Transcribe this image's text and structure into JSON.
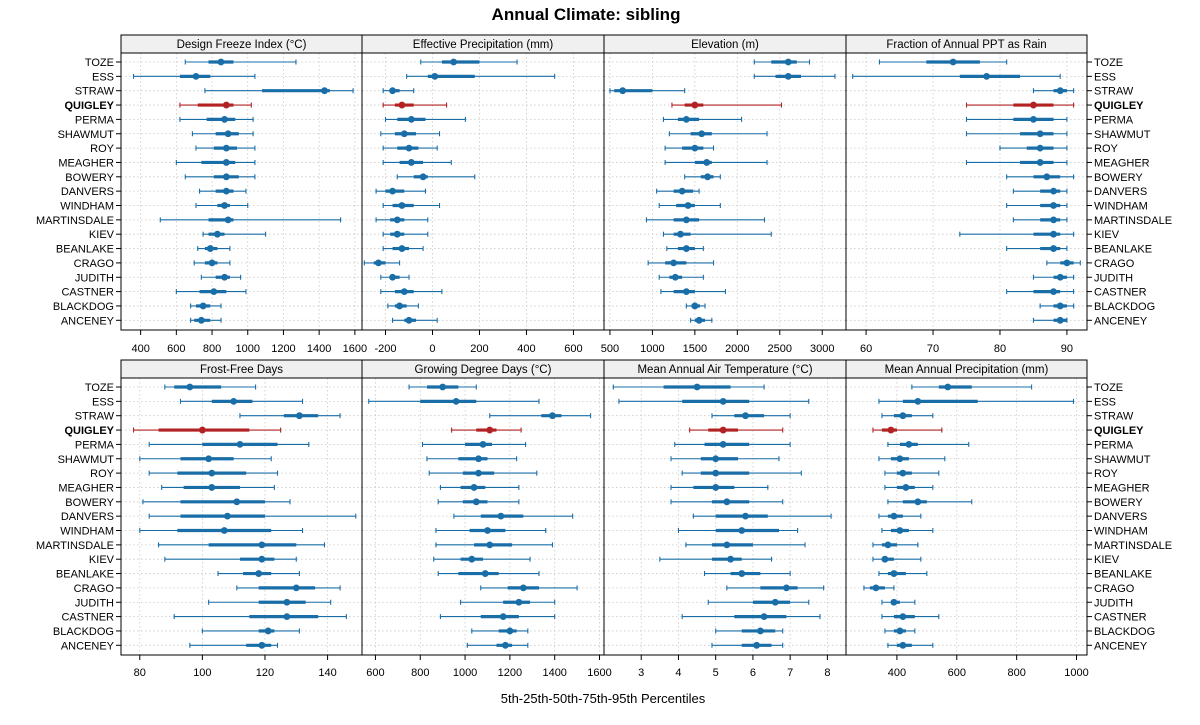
{
  "title": "Annual Climate: sibling",
  "xlabel": "5th-25th-50th-75th-95th Percentiles",
  "colors": {
    "normal": "#1a6ea8",
    "highlight": "#b22222",
    "strip_bg": "#f0f0f0",
    "grid": "#c8c8c8"
  },
  "sites": [
    "TOZE",
    "ESS",
    "STRAW",
    "QUIGLEY",
    "PERMA",
    "SHAWMUT",
    "ROY",
    "MEAGHER",
    "BOWERY",
    "DANVERS",
    "WINDHAM",
    "MARTINSDALE",
    "KIEV",
    "BEANLAKE",
    "CRAGO",
    "JUDITH",
    "CASTNER",
    "BLACKDOG",
    "ANCENEY"
  ],
  "highlight_site": "QUIGLEY",
  "chart_data": [
    {
      "type": "percentile-dotplot",
      "title": "Design Freeze Index (°C)",
      "xlim": [
        290,
        1640
      ],
      "ticks": [
        400,
        600,
        800,
        1000,
        1200,
        1400,
        1600
      ],
      "tick_labels": [
        "400",
        "600",
        "800",
        "1000",
        "1200",
        "1400",
        "1600"
      ],
      "values": [
        [
          650,
          780,
          850,
          920,
          1270
        ],
        [
          360,
          620,
          710,
          790,
          1040
        ],
        [
          760,
          1080,
          1430,
          1460,
          1590
        ],
        [
          620,
          720,
          880,
          920,
          1020
        ],
        [
          620,
          770,
          870,
          930,
          1030
        ],
        [
          690,
          820,
          890,
          950,
          1030
        ],
        [
          710,
          810,
          880,
          940,
          1040
        ],
        [
          600,
          740,
          880,
          930,
          1040
        ],
        [
          650,
          810,
          880,
          950,
          1040
        ],
        [
          730,
          820,
          880,
          920,
          990
        ],
        [
          710,
          830,
          870,
          900,
          1000
        ],
        [
          510,
          780,
          890,
          920,
          1520
        ],
        [
          750,
          780,
          830,
          870,
          1100
        ],
        [
          720,
          760,
          790,
          830,
          900
        ],
        [
          700,
          760,
          800,
          830,
          900
        ],
        [
          740,
          820,
          870,
          900,
          960
        ],
        [
          600,
          730,
          810,
          880,
          990
        ],
        [
          680,
          710,
          750,
          790,
          850
        ],
        [
          680,
          700,
          740,
          790,
          850
        ]
      ]
    },
    {
      "type": "percentile-dotplot",
      "title": "Effective Precipitation (mm)",
      "xlim": [
        -300,
        730
      ],
      "ticks": [
        -200,
        0,
        200,
        400,
        600
      ],
      "tick_labels": [
        "-200",
        "0",
        "200",
        "400",
        "600"
      ],
      "values": [
        [
          -50,
          40,
          90,
          200,
          360
        ],
        [
          -110,
          -20,
          10,
          180,
          520
        ],
        [
          -210,
          -180,
          -170,
          -140,
          -80
        ],
        [
          -210,
          -160,
          -130,
          -80,
          60
        ],
        [
          -200,
          -150,
          -90,
          -30,
          140
        ],
        [
          -220,
          -160,
          -120,
          -70,
          30
        ],
        [
          -210,
          -150,
          -100,
          -60,
          20
        ],
        [
          -210,
          -140,
          -90,
          -40,
          80
        ],
        [
          -150,
          -80,
          -40,
          -20,
          180
        ],
        [
          -240,
          -200,
          -170,
          -120,
          -30
        ],
        [
          -210,
          -170,
          -130,
          -80,
          30
        ],
        [
          -240,
          -180,
          -150,
          -120,
          -20
        ],
        [
          -210,
          -180,
          -150,
          -120,
          -20
        ],
        [
          -210,
          -170,
          -130,
          -100,
          -40
        ],
        [
          -290,
          -250,
          -230,
          -200,
          -140
        ],
        [
          -220,
          -180,
          -170,
          -140,
          -100
        ],
        [
          -220,
          -160,
          -120,
          -80,
          40
        ],
        [
          -190,
          -160,
          -140,
          -110,
          -60
        ],
        [
          -170,
          -120,
          -100,
          -70,
          20
        ]
      ]
    },
    {
      "type": "percentile-dotplot",
      "title": "Elevation (m)",
      "xlim": [
        430,
        3280
      ],
      "ticks": [
        500,
        1000,
        1500,
        2000,
        2500,
        3000
      ],
      "tick_labels": [
        "500",
        "1000",
        "1500",
        "2000",
        "2500",
        "3000"
      ],
      "values": [
        [
          2200,
          2400,
          2600,
          2700,
          2850
        ],
        [
          2200,
          2450,
          2600,
          2750,
          3150
        ],
        [
          500,
          550,
          650,
          1000,
          1380
        ],
        [
          1230,
          1380,
          1500,
          1600,
          2520
        ],
        [
          1130,
          1300,
          1400,
          1550,
          2050
        ],
        [
          1200,
          1450,
          1580,
          1700,
          2350
        ],
        [
          1150,
          1350,
          1500,
          1600,
          1720
        ],
        [
          1150,
          1500,
          1640,
          1700,
          2350
        ],
        [
          1380,
          1570,
          1650,
          1720,
          1800
        ],
        [
          1050,
          1250,
          1350,
          1480,
          1550
        ],
        [
          1080,
          1280,
          1420,
          1500,
          1800
        ],
        [
          930,
          1250,
          1400,
          1550,
          2320
        ],
        [
          1130,
          1250,
          1330,
          1450,
          2400
        ],
        [
          1170,
          1300,
          1400,
          1500,
          1600
        ],
        [
          950,
          1150,
          1250,
          1400,
          1720
        ],
        [
          1080,
          1200,
          1270,
          1350,
          1600
        ],
        [
          1100,
          1250,
          1400,
          1500,
          1860
        ],
        [
          1400,
          1460,
          1500,
          1560,
          1620
        ],
        [
          1450,
          1500,
          1550,
          1620,
          1700
        ]
      ]
    },
    {
      "type": "percentile-dotplot",
      "title": "Fraction of Annual PPT as Rain",
      "xlim": [
        57,
        93
      ],
      "ticks": [
        60,
        70,
        80,
        90
      ],
      "tick_labels": [
        "60",
        "70",
        "80",
        "90"
      ],
      "values": [
        [
          62,
          69,
          73,
          77,
          81
        ],
        [
          58,
          74,
          78,
          83,
          89
        ],
        [
          85,
          88,
          89,
          90,
          91
        ],
        [
          75,
          82,
          85,
          88,
          91
        ],
        [
          75,
          82,
          85,
          88,
          90
        ],
        [
          75,
          83,
          86,
          88,
          90
        ],
        [
          80,
          84,
          86,
          88,
          90
        ],
        [
          75,
          83,
          86,
          88,
          90
        ],
        [
          81,
          85,
          87,
          89,
          91
        ],
        [
          82,
          86,
          88,
          89,
          90
        ],
        [
          81,
          86,
          88,
          89,
          90
        ],
        [
          82,
          86,
          88,
          89,
          90
        ],
        [
          74,
          85,
          88,
          89,
          91
        ],
        [
          81,
          86,
          88,
          89,
          90
        ],
        [
          87,
          89,
          90,
          91,
          92
        ],
        [
          85,
          88,
          89,
          90,
          91
        ],
        [
          81,
          85,
          88,
          89,
          91
        ],
        [
          86,
          88,
          89,
          90,
          91
        ],
        [
          85,
          88,
          89,
          90,
          90
        ]
      ]
    },
    {
      "type": "percentile-dotplot",
      "title": "Frost-Free Days",
      "xlim": [
        74,
        151
      ],
      "ticks": [
        80,
        100,
        120,
        140
      ],
      "tick_labels": [
        "80",
        "100",
        "120",
        "140"
      ],
      "values": [
        [
          88,
          91,
          96,
          106,
          117
        ],
        [
          93,
          103,
          110,
          116,
          132
        ],
        [
          112,
          126,
          131,
          137,
          144
        ],
        [
          78,
          86,
          100,
          115,
          125
        ],
        [
          83,
          100,
          112,
          124,
          134
        ],
        [
          80,
          93,
          102,
          110,
          122
        ],
        [
          83,
          92,
          103,
          114,
          124
        ],
        [
          87,
          94,
          103,
          112,
          123
        ],
        [
          81,
          93,
          111,
          120,
          128
        ],
        [
          83,
          93,
          108,
          120,
          149
        ],
        [
          80,
          92,
          107,
          122,
          132
        ],
        [
          86,
          102,
          119,
          130,
          139
        ],
        [
          88,
          112,
          119,
          123,
          130
        ],
        [
          105,
          113,
          118,
          122,
          131
        ],
        [
          111,
          118,
          130,
          136,
          144
        ],
        [
          102,
          118,
          127,
          133,
          141
        ],
        [
          91,
          115,
          127,
          137,
          146
        ],
        [
          100,
          118,
          121,
          123,
          131
        ],
        [
          96,
          114,
          119,
          122,
          124
        ]
      ]
    },
    {
      "type": "percentile-dotplot",
      "title": "Growing Degree Days (°C)",
      "xlim": [
        540,
        1620
      ],
      "ticks": [
        600,
        800,
        1000,
        1200,
        1400,
        1600
      ],
      "tick_labels": [
        "600",
        "800",
        "1000",
        "1200",
        "1400",
        "1600"
      ],
      "values": [
        [
          750,
          830,
          900,
          970,
          1050
        ],
        [
          570,
          800,
          960,
          1050,
          1330
        ],
        [
          1110,
          1340,
          1390,
          1430,
          1560
        ],
        [
          940,
          1050,
          1110,
          1140,
          1250
        ],
        [
          810,
          1000,
          1080,
          1120,
          1270
        ],
        [
          830,
          970,
          1060,
          1100,
          1230
        ],
        [
          840,
          990,
          1060,
          1130,
          1320
        ],
        [
          890,
          980,
          1040,
          1090,
          1240
        ],
        [
          880,
          990,
          1050,
          1100,
          1240
        ],
        [
          950,
          1070,
          1160,
          1260,
          1480
        ],
        [
          870,
          1020,
          1100,
          1180,
          1360
        ],
        [
          870,
          1040,
          1110,
          1210,
          1390
        ],
        [
          860,
          980,
          1030,
          1080,
          1290
        ],
        [
          880,
          970,
          1090,
          1150,
          1330
        ],
        [
          1070,
          1190,
          1260,
          1330,
          1500
        ],
        [
          980,
          1170,
          1240,
          1290,
          1400
        ],
        [
          890,
          1070,
          1170,
          1240,
          1400
        ],
        [
          1030,
          1150,
          1200,
          1230,
          1280
        ],
        [
          1010,
          1140,
          1180,
          1210,
          1280
        ]
      ]
    },
    {
      "type": "percentile-dotplot",
      "title": "Mean Annual Air Temperature (°C)",
      "xlim": [
        2.0,
        8.5
      ],
      "ticks": [
        3,
        4,
        5,
        6,
        7,
        8
      ],
      "tick_labels": [
        "3",
        "4",
        "5",
        "6",
        "7",
        "8"
      ],
      "values": [
        [
          2.25,
          3.6,
          4.5,
          5.4,
          6.3
        ],
        [
          2.4,
          4.1,
          5.2,
          5.9,
          7.5
        ],
        [
          4.9,
          5.5,
          5.8,
          6.3,
          7.0
        ],
        [
          4.3,
          4.8,
          5.2,
          5.6,
          6.8
        ],
        [
          3.9,
          4.7,
          5.2,
          5.9,
          7.0
        ],
        [
          3.8,
          4.6,
          5.0,
          5.6,
          6.7
        ],
        [
          4.1,
          4.6,
          5.0,
          5.9,
          7.3
        ],
        [
          3.8,
          4.4,
          5.0,
          5.5,
          6.4
        ],
        [
          3.8,
          4.9,
          5.3,
          5.9,
          6.8
        ],
        [
          4.4,
          5.0,
          5.8,
          6.4,
          8.1
        ],
        [
          4.0,
          5.0,
          5.7,
          6.7,
          7.2
        ],
        [
          4.2,
          4.9,
          5.3,
          6.0,
          7.4
        ],
        [
          3.5,
          4.9,
          5.4,
          5.7,
          6.5
        ],
        [
          4.7,
          5.4,
          5.7,
          6.2,
          7.0
        ],
        [
          5.3,
          6.2,
          6.9,
          7.2,
          7.9
        ],
        [
          4.8,
          6.0,
          6.6,
          7.0,
          7.5
        ],
        [
          4.1,
          5.5,
          6.3,
          6.9,
          7.8
        ],
        [
          5.0,
          5.7,
          6.2,
          6.6,
          6.8
        ],
        [
          4.9,
          5.7,
          6.1,
          6.5,
          6.8
        ]
      ]
    },
    {
      "type": "percentile-dotplot",
      "title": "Mean Annual Precipitation (mm)",
      "xlim": [
        230,
        1035
      ],
      "ticks": [
        400,
        600,
        800,
        1000
      ],
      "tick_labels": [
        "400",
        "600",
        "800",
        "1000"
      ],
      "values": [
        [
          450,
          540,
          570,
          650,
          850
        ],
        [
          340,
          420,
          470,
          670,
          990
        ],
        [
          350,
          390,
          420,
          450,
          520
        ],
        [
          320,
          350,
          380,
          400,
          550
        ],
        [
          370,
          410,
          440,
          470,
          640
        ],
        [
          340,
          380,
          410,
          440,
          560
        ],
        [
          360,
          400,
          420,
          450,
          540
        ],
        [
          360,
          400,
          430,
          460,
          520
        ],
        [
          370,
          420,
          470,
          500,
          650
        ],
        [
          340,
          370,
          390,
          420,
          480
        ],
        [
          350,
          380,
          410,
          440,
          520
        ],
        [
          320,
          350,
          370,
          400,
          470
        ],
        [
          320,
          350,
          360,
          390,
          480
        ],
        [
          340,
          370,
          390,
          430,
          500
        ],
        [
          290,
          310,
          330,
          360,
          390
        ],
        [
          350,
          380,
          390,
          410,
          460
        ],
        [
          350,
          390,
          420,
          460,
          540
        ],
        [
          360,
          390,
          410,
          430,
          460
        ],
        [
          370,
          400,
          420,
          450,
          520
        ]
      ]
    }
  ]
}
